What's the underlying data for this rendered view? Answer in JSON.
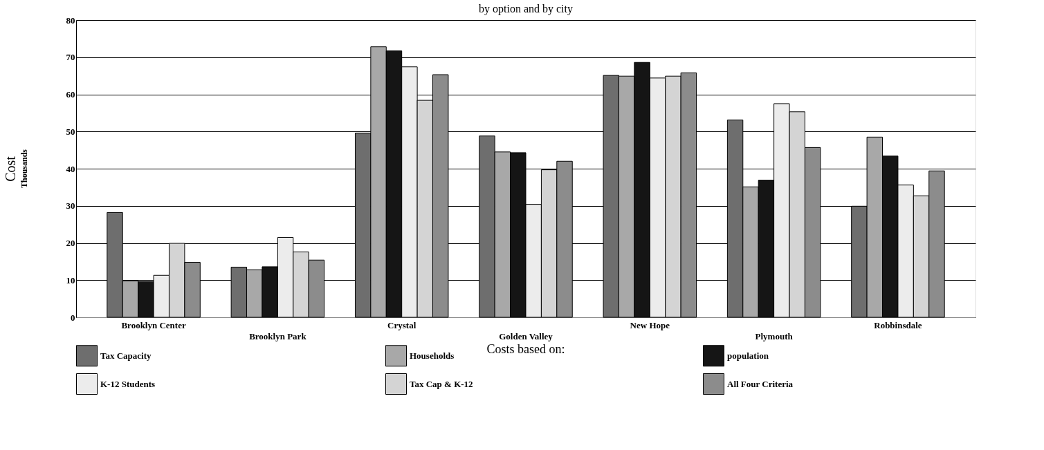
{
  "chart_data": {
    "type": "bar",
    "title": "by option and by city",
    "ylabel": "Cost",
    "xlabel": "Costs based on:",
    "legend_title": null,
    "annotations": [
      "Thousands"
    ],
    "categories": [
      "Brooklyn Center",
      "Brooklyn Park",
      "Crystal",
      "Golden Valley",
      "New Hope",
      "Plymouth",
      "Robbinsdale"
    ],
    "series": [
      {
        "name": "Tax Capacity",
        "color": "#6e6e6e",
        "values": [
          28.2,
          13.5,
          49.6,
          48.8,
          65.1,
          53.1,
          29.9
        ]
      },
      {
        "name": "Households",
        "color": "#a8a8a8",
        "values": [
          9.8,
          12.8,
          72.8,
          44.5,
          64.9,
          35.1,
          48.5
        ]
      },
      {
        "name": "population",
        "color": "#151515",
        "values": [
          9.6,
          13.6,
          71.7,
          44.3,
          68.6,
          36.9,
          43.4
        ]
      },
      {
        "name": "K-12 Students",
        "color": "#ececec",
        "values": [
          11.3,
          21.5,
          67.4,
          30.4,
          64.4,
          57.5,
          35.6
        ]
      },
      {
        "name": "Tax Cap & K-12",
        "color": "#d4d4d4",
        "values": [
          19.9,
          17.6,
          58.4,
          39.7,
          64.9,
          55.3,
          32.7
        ]
      },
      {
        "name": "All Four Criteria",
        "color": "#8c8c8c",
        "values": [
          14.8,
          15.4,
          65.3,
          42.0,
          65.8,
          45.7,
          39.4
        ]
      }
    ],
    "ylim": [
      0,
      80
    ],
    "yticks": [
      0,
      10,
      20,
      30,
      40,
      50,
      60,
      70,
      80
    ],
    "grid": "y",
    "legend": "bottom"
  }
}
